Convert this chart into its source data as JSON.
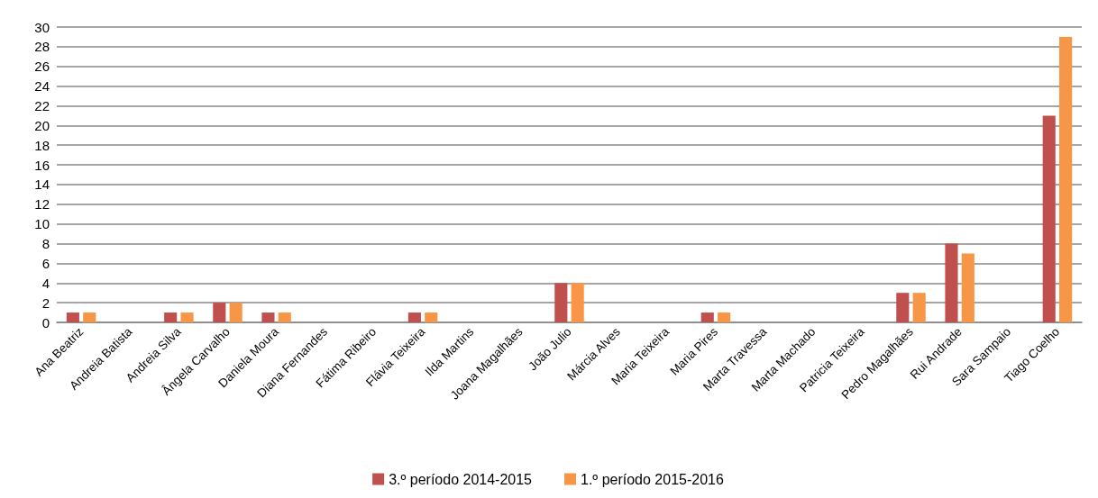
{
  "chart_data": {
    "type": "bar",
    "categories": [
      "Ana Beatriz",
      "Andreia Batista",
      "Andreia Silva",
      "Ângela Carvalho",
      "Daniela Moura",
      "Diana Fernandes",
      "Fátima Ribeiro",
      "Flávia Teixeira",
      "Ilda Martins",
      "Joana Magalhães",
      "João Julio",
      "Márcia Alves",
      "Maria Teixeira",
      "Maria Pires",
      "Marta Travessa",
      "Marta Machado",
      "Patricia Teixeira",
      "Pedro Magalhães",
      "Rui Andrade",
      "Sara Sampaio",
      "Tiago Coelho"
    ],
    "series": [
      {
        "name": "3.º período 2014-2015",
        "color": "#c0504d",
        "values": [
          1,
          0,
          1,
          2,
          1,
          0,
          0,
          1,
          0,
          0,
          4,
          0,
          0,
          1,
          0,
          0,
          0,
          3,
          8,
          0,
          21
        ]
      },
      {
        "name": "1.º período 2015-2016",
        "color": "#f79646",
        "values": [
          1,
          0,
          1,
          2,
          1,
          0,
          0,
          1,
          0,
          0,
          4,
          0,
          0,
          1,
          0,
          0,
          0,
          3,
          7,
          0,
          29
        ]
      }
    ],
    "ylim": [
      0,
      30
    ],
    "yticks": [
      0,
      2,
      4,
      6,
      8,
      10,
      12,
      14,
      16,
      18,
      20,
      22,
      24,
      26,
      28,
      30
    ],
    "grid": "y",
    "legend": "bottom"
  }
}
